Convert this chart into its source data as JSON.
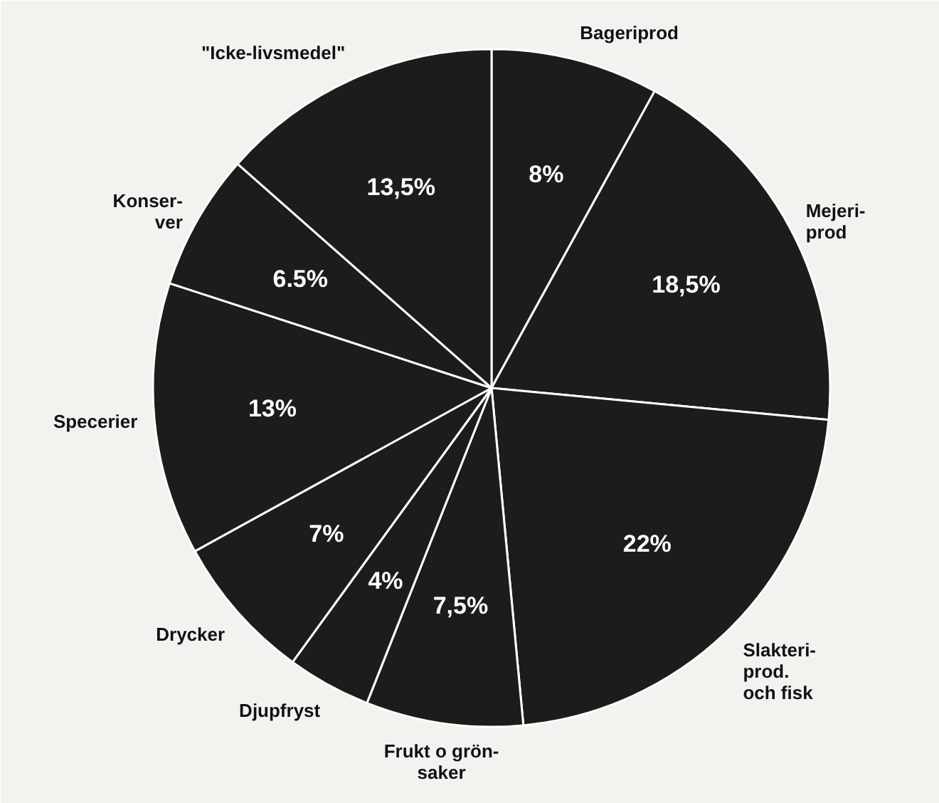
{
  "chart_data": {
    "type": "pie",
    "categories": [
      "Bageriprod",
      "Mejeri-\nprod",
      "Slakteri-\nprod.\noch fisk",
      "Frukt o grön-\nsaker",
      "Djupfryst",
      "Drycker",
      "Specerier",
      "Konser-\nver",
      "\"Icke-livsmedel\""
    ],
    "values": [
      8,
      18.5,
      22,
      7.5,
      4,
      7,
      13,
      6.5,
      13.5
    ],
    "value_labels": [
      "8%",
      "18,5%",
      "22%",
      "7,5%",
      "4%",
      "7%",
      "13%",
      "6.5%",
      "13,5%"
    ],
    "colors": [
      "#1c1c1c",
      "#1c1c1c",
      "#1c1c1c",
      "#1c1c1c",
      "#1c1c1c",
      "#1c1c1c",
      "#1c1c1c",
      "#1c1c1c",
      "#1c1c1c"
    ]
  }
}
